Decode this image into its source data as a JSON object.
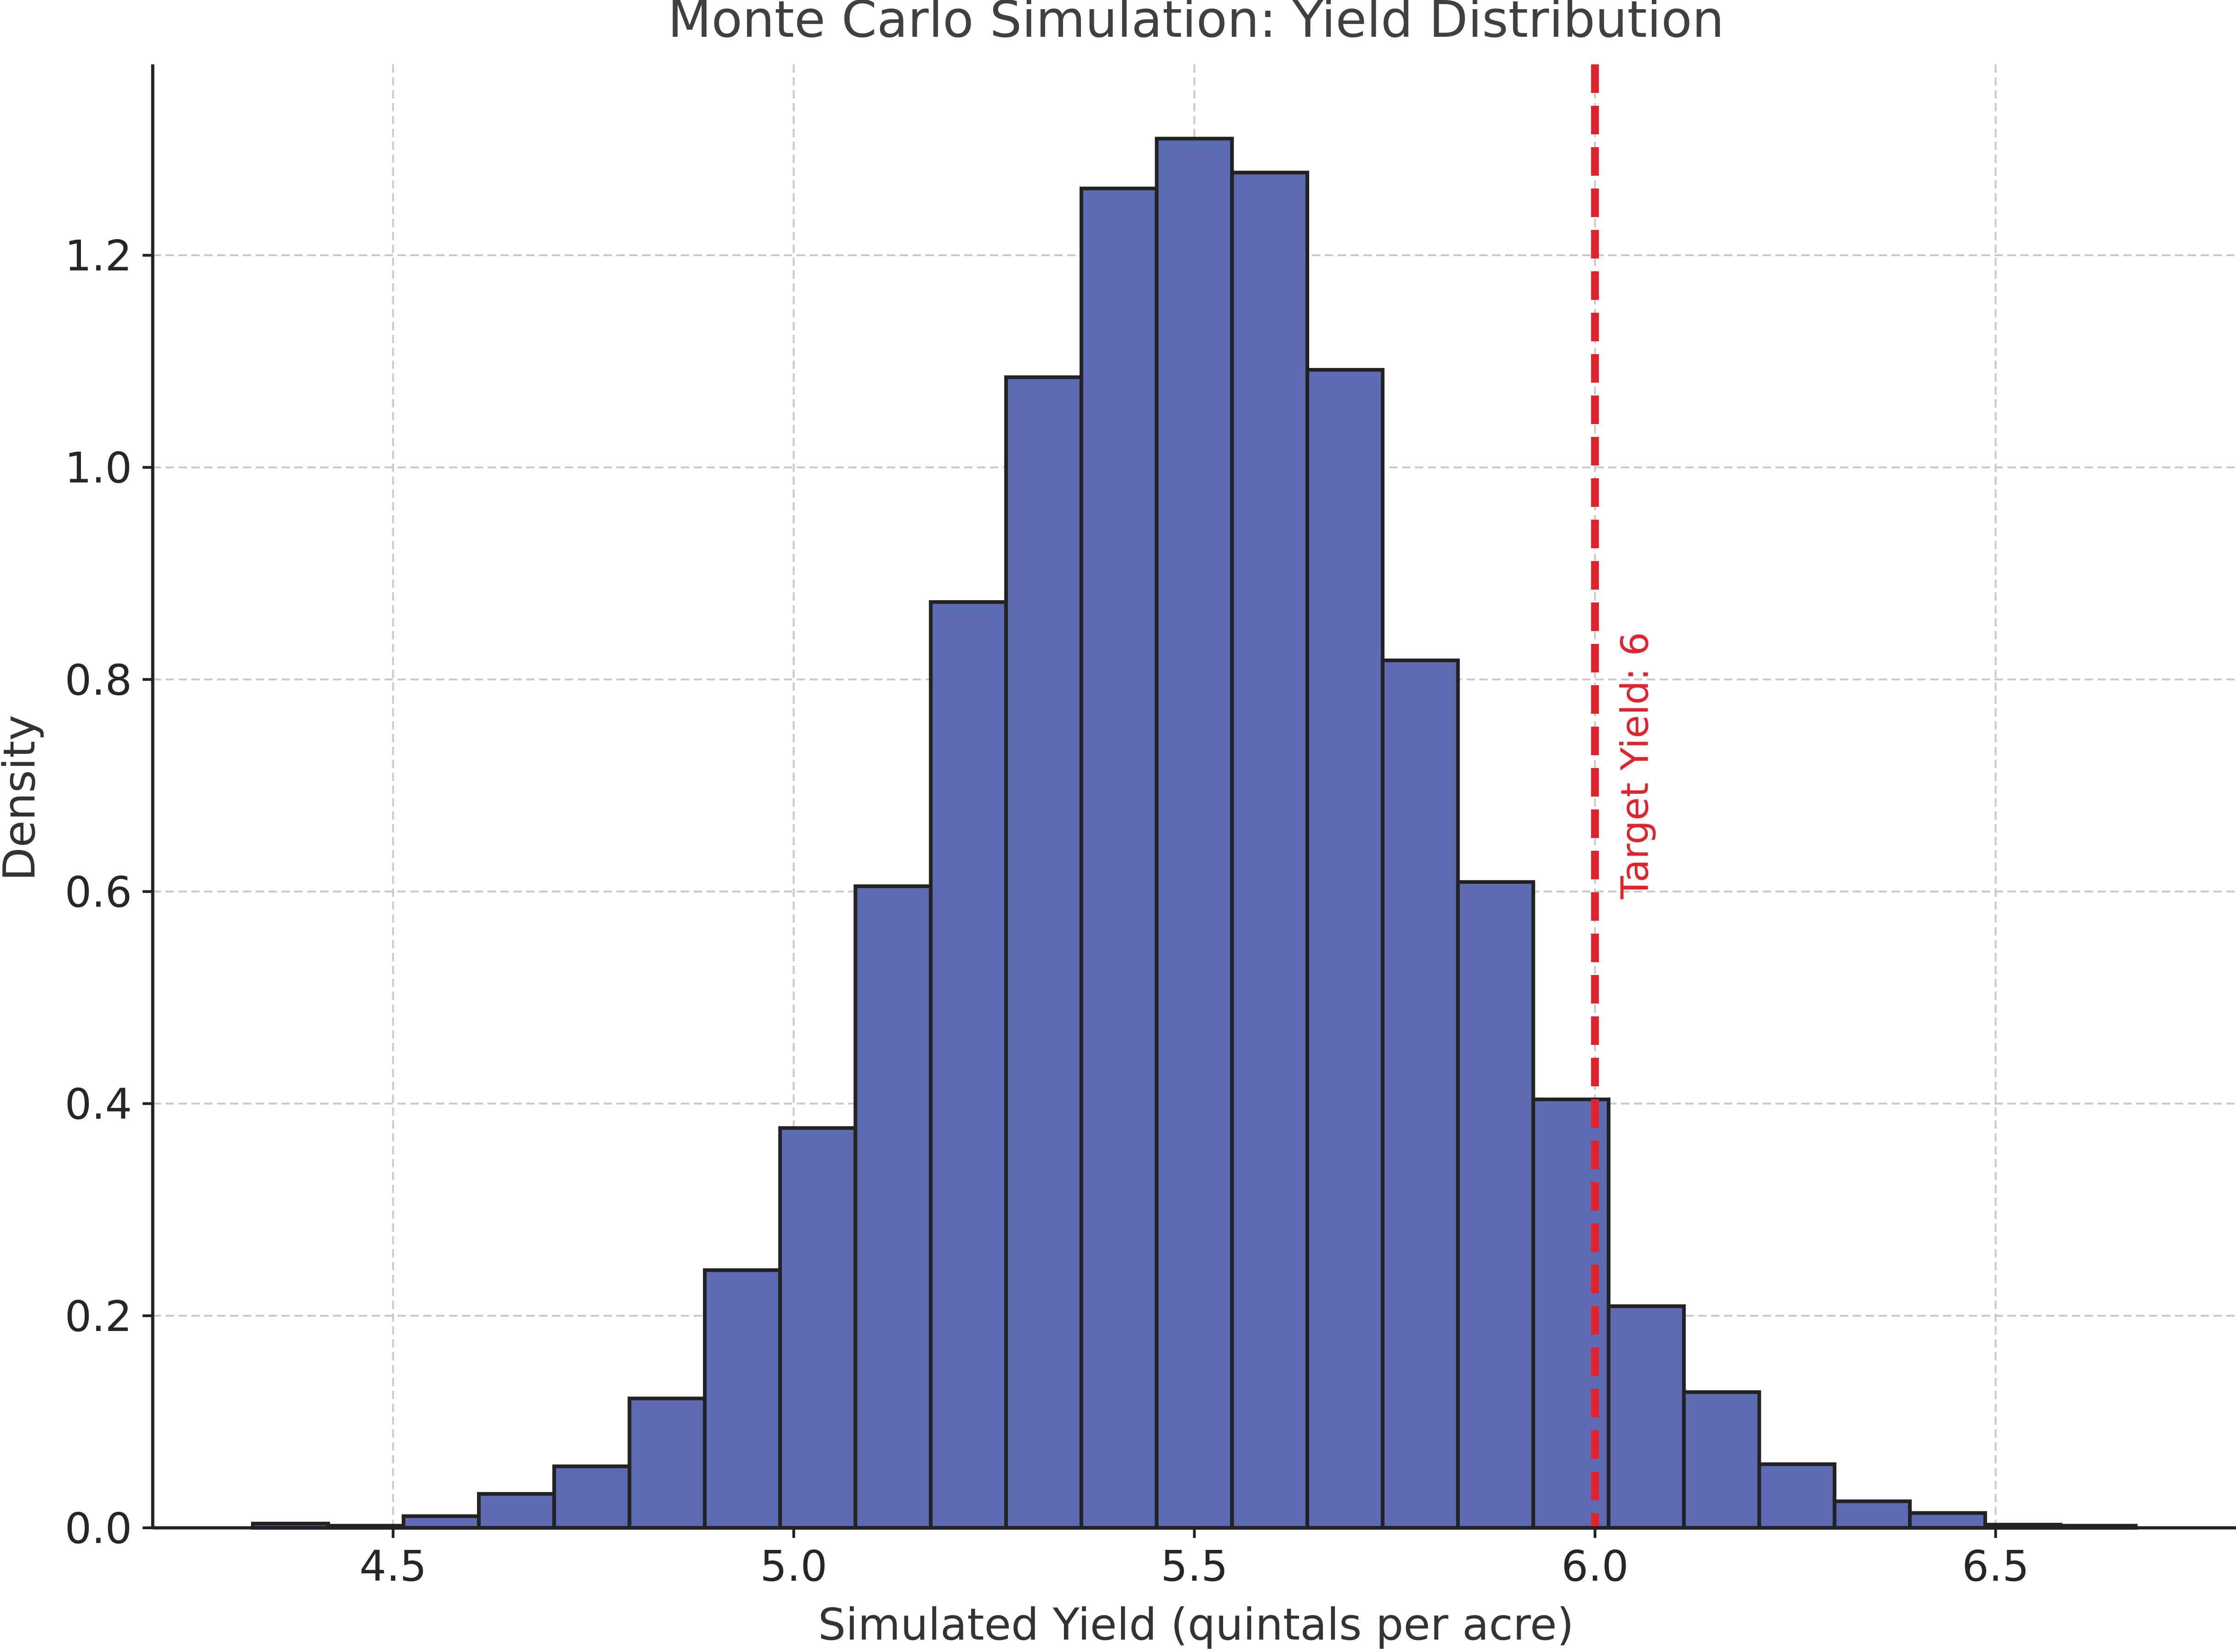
{
  "chart_data": {
    "type": "bar",
    "title": "Monte Carlo Simulation: Yield Distribution",
    "xlabel": "Simulated Yield (quintals per acre)",
    "ylabel": "Density",
    "xlim": [
      4.2,
      6.8
    ],
    "ylim": [
      0,
      1.38
    ],
    "xticks": [
      4.5,
      5.0,
      5.5,
      6.0,
      6.5
    ],
    "xtick_labels": [
      "4.5",
      "5.0",
      "5.5",
      "6.0",
      "6.5"
    ],
    "yticks": [
      0.0,
      0.2,
      0.4,
      0.6,
      0.8,
      1.0,
      1.2
    ],
    "ytick_labels": [
      "0.0",
      "0.2",
      "0.4",
      "0.6",
      "0.8",
      "1.0",
      "1.2"
    ],
    "grid": true,
    "bin_edges": [
      4.325,
      4.419,
      4.513,
      4.607,
      4.701,
      4.795,
      4.889,
      4.983,
      5.077,
      5.171,
      5.265,
      5.359,
      5.453,
      5.547,
      5.641,
      5.735,
      5.829,
      5.923,
      6.017,
      6.111,
      6.205,
      6.299,
      6.393,
      6.487,
      6.581,
      6.675
    ],
    "values": [
      0.004,
      0.002,
      0.011,
      0.032,
      0.058,
      0.122,
      0.243,
      0.377,
      0.605,
      0.873,
      1.085,
      1.263,
      1.31,
      1.278,
      1.092,
      0.818,
      0.609,
      0.404,
      0.209,
      0.128,
      0.06,
      0.025,
      0.014,
      0.003,
      0.002
    ],
    "reference_line": {
      "x": 6.0,
      "label": "Target Yield: 6",
      "color": "#e3232c",
      "style": "dashed"
    },
    "colors": {
      "bar_fill": "#5d6bb2",
      "bar_edge": "#222222"
    }
  }
}
